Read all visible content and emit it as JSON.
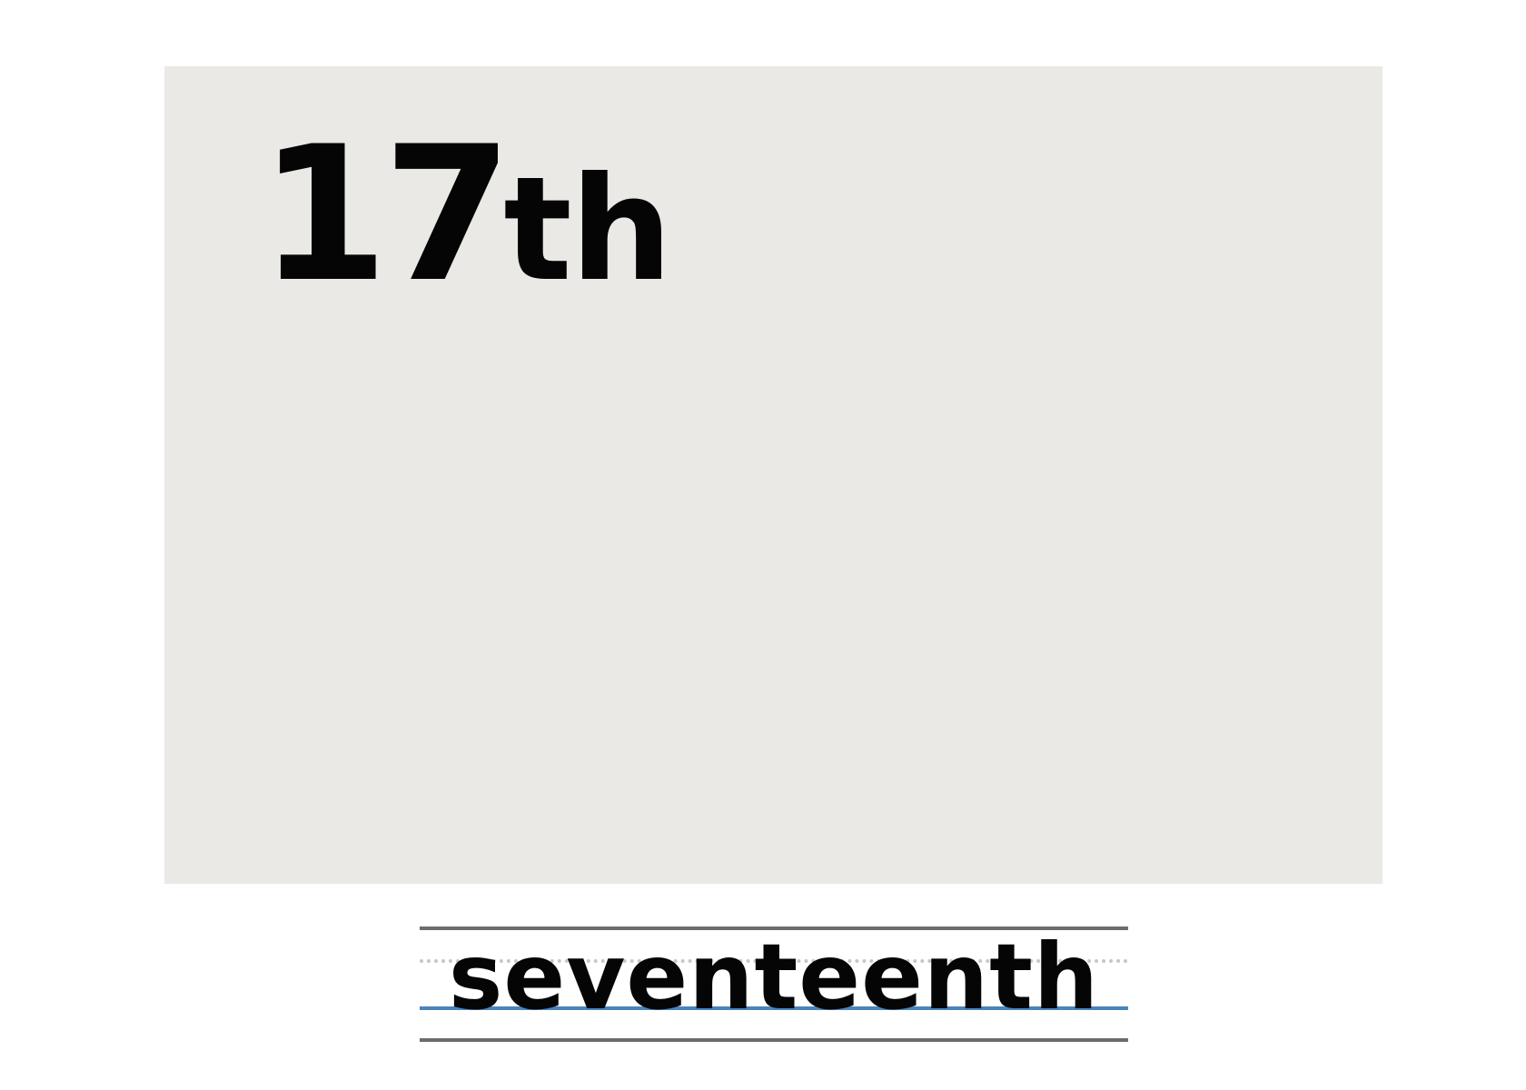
{
  "card": {
    "number": "17",
    "suffix": "th",
    "background": "#eae9e6"
  },
  "writing": {
    "word": "seventeenth",
    "baseline_color": "#4a84ba",
    "guide_color": "#6e6d6d"
  }
}
